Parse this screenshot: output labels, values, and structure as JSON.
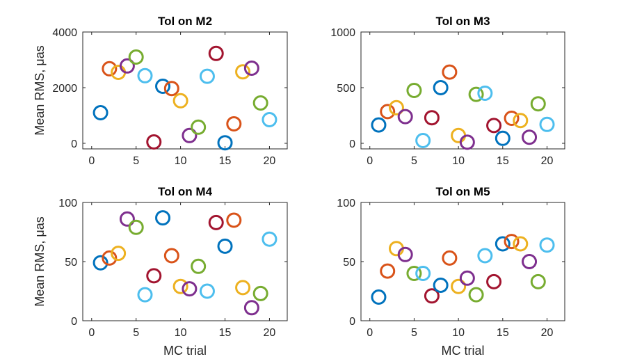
{
  "palette": [
    "#0072BD",
    "#D95319",
    "#EDB120",
    "#7E2F8E",
    "#77AC30",
    "#4DBEEE",
    "#A2142F"
  ],
  "chart_data": [
    {
      "type": "scatter",
      "title": "Tol on M2",
      "xlabel": "",
      "ylabel": "Mean RMS, μas",
      "xlim": [
        -1,
        22
      ],
      "ylim": [
        -200,
        4000
      ],
      "xticks": [
        0,
        5,
        10,
        15,
        20
      ],
      "yticks": [
        0,
        2000,
        4000
      ],
      "x": [
        1,
        2,
        3,
        4,
        5,
        6,
        7,
        8,
        9,
        10,
        11,
        12,
        13,
        14,
        15,
        16,
        17,
        18,
        19,
        20
      ],
      "y": [
        1100,
        2680,
        2550,
        2780,
        3100,
        2430,
        50,
        2050,
        1970,
        1530,
        280,
        580,
        2410,
        3230,
        20,
        700,
        2570,
        2700,
        1450,
        850
      ]
    },
    {
      "type": "scatter",
      "title": "Tol on M3",
      "xlabel": "",
      "ylabel": "",
      "xlim": [
        -1,
        22
      ],
      "ylim": [
        -50,
        1000
      ],
      "xticks": [
        0,
        5,
        10,
        15,
        20
      ],
      "yticks": [
        0,
        500,
        1000
      ],
      "x": [
        1,
        2,
        3,
        4,
        5,
        6,
        7,
        8,
        9,
        10,
        11,
        12,
        13,
        14,
        15,
        16,
        17,
        18,
        19,
        20
      ],
      "y": [
        165,
        285,
        320,
        240,
        475,
        25,
        230,
        500,
        640,
        70,
        10,
        440,
        450,
        160,
        45,
        225,
        205,
        55,
        355,
        170
      ]
    },
    {
      "type": "scatter",
      "title": "Tol on M4",
      "xlabel": "MC trial",
      "ylabel": "Mean RMS, μas",
      "xlim": [
        -1,
        22
      ],
      "ylim": [
        0,
        100
      ],
      "xticks": [
        0,
        5,
        10,
        15,
        20
      ],
      "yticks": [
        0,
        50,
        100
      ],
      "x": [
        1,
        2,
        3,
        4,
        5,
        6,
        7,
        8,
        9,
        10,
        11,
        12,
        13,
        14,
        15,
        16,
        17,
        18,
        19,
        20
      ],
      "y": [
        49,
        53,
        57,
        86,
        79,
        22,
        38,
        87,
        55,
        29,
        27,
        46,
        25,
        83,
        63,
        85,
        28,
        11,
        23,
        69
      ]
    },
    {
      "type": "scatter",
      "title": "Tol on M5",
      "xlabel": "MC trial",
      "ylabel": "",
      "xlim": [
        -1,
        22
      ],
      "ylim": [
        0,
        100
      ],
      "xticks": [
        0,
        5,
        10,
        15,
        20
      ],
      "yticks": [
        0,
        50,
        100
      ],
      "x": [
        1,
        2,
        3,
        4,
        5,
        6,
        7,
        8,
        9,
        10,
        11,
        12,
        13,
        14,
        15,
        16,
        17,
        18,
        19,
        20
      ],
      "y": [
        20,
        42,
        61,
        56,
        40,
        40,
        21,
        30,
        53,
        29,
        36,
        22,
        55,
        33,
        65,
        67,
        65,
        50,
        33,
        64
      ]
    }
  ]
}
